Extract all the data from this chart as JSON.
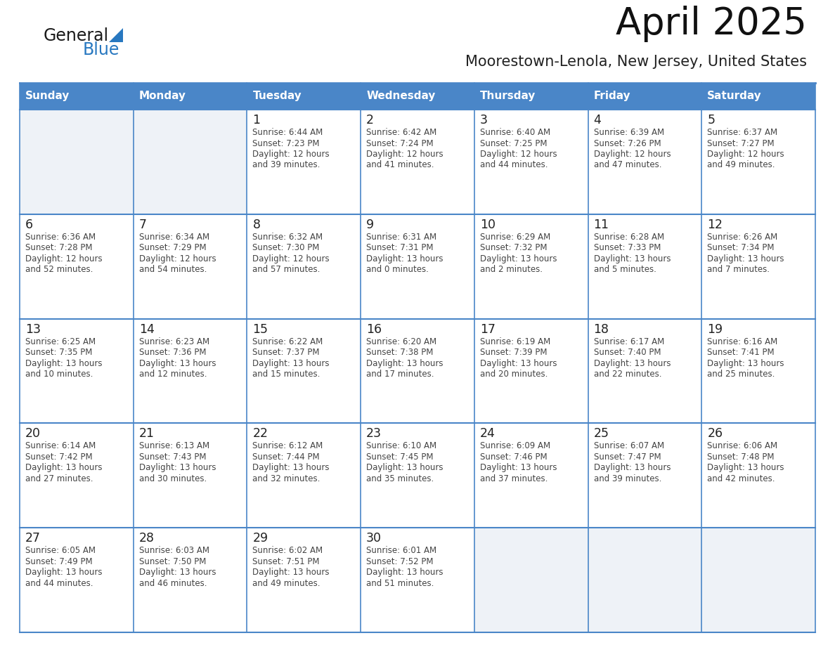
{
  "title": "April 2025",
  "subtitle": "Moorestown-Lenola, New Jersey, United States",
  "header_color": "#4a86c8",
  "header_text_color": "#ffffff",
  "cell_bg_light": "#eef2f7",
  "cell_bg_white": "#ffffff",
  "text_color": "#333333",
  "line_color": "#4a86c8",
  "days_of_week": [
    "Sunday",
    "Monday",
    "Tuesday",
    "Wednesday",
    "Thursday",
    "Friday",
    "Saturday"
  ],
  "calendar_data": [
    [
      {
        "day": "",
        "info": ""
      },
      {
        "day": "",
        "info": ""
      },
      {
        "day": "1",
        "info": "Sunrise: 6:44 AM\nSunset: 7:23 PM\nDaylight: 12 hours\nand 39 minutes."
      },
      {
        "day": "2",
        "info": "Sunrise: 6:42 AM\nSunset: 7:24 PM\nDaylight: 12 hours\nand 41 minutes."
      },
      {
        "day": "3",
        "info": "Sunrise: 6:40 AM\nSunset: 7:25 PM\nDaylight: 12 hours\nand 44 minutes."
      },
      {
        "day": "4",
        "info": "Sunrise: 6:39 AM\nSunset: 7:26 PM\nDaylight: 12 hours\nand 47 minutes."
      },
      {
        "day": "5",
        "info": "Sunrise: 6:37 AM\nSunset: 7:27 PM\nDaylight: 12 hours\nand 49 minutes."
      }
    ],
    [
      {
        "day": "6",
        "info": "Sunrise: 6:36 AM\nSunset: 7:28 PM\nDaylight: 12 hours\nand 52 minutes."
      },
      {
        "day": "7",
        "info": "Sunrise: 6:34 AM\nSunset: 7:29 PM\nDaylight: 12 hours\nand 54 minutes."
      },
      {
        "day": "8",
        "info": "Sunrise: 6:32 AM\nSunset: 7:30 PM\nDaylight: 12 hours\nand 57 minutes."
      },
      {
        "day": "9",
        "info": "Sunrise: 6:31 AM\nSunset: 7:31 PM\nDaylight: 13 hours\nand 0 minutes."
      },
      {
        "day": "10",
        "info": "Sunrise: 6:29 AM\nSunset: 7:32 PM\nDaylight: 13 hours\nand 2 minutes."
      },
      {
        "day": "11",
        "info": "Sunrise: 6:28 AM\nSunset: 7:33 PM\nDaylight: 13 hours\nand 5 minutes."
      },
      {
        "day": "12",
        "info": "Sunrise: 6:26 AM\nSunset: 7:34 PM\nDaylight: 13 hours\nand 7 minutes."
      }
    ],
    [
      {
        "day": "13",
        "info": "Sunrise: 6:25 AM\nSunset: 7:35 PM\nDaylight: 13 hours\nand 10 minutes."
      },
      {
        "day": "14",
        "info": "Sunrise: 6:23 AM\nSunset: 7:36 PM\nDaylight: 13 hours\nand 12 minutes."
      },
      {
        "day": "15",
        "info": "Sunrise: 6:22 AM\nSunset: 7:37 PM\nDaylight: 13 hours\nand 15 minutes."
      },
      {
        "day": "16",
        "info": "Sunrise: 6:20 AM\nSunset: 7:38 PM\nDaylight: 13 hours\nand 17 minutes."
      },
      {
        "day": "17",
        "info": "Sunrise: 6:19 AM\nSunset: 7:39 PM\nDaylight: 13 hours\nand 20 minutes."
      },
      {
        "day": "18",
        "info": "Sunrise: 6:17 AM\nSunset: 7:40 PM\nDaylight: 13 hours\nand 22 minutes."
      },
      {
        "day": "19",
        "info": "Sunrise: 6:16 AM\nSunset: 7:41 PM\nDaylight: 13 hours\nand 25 minutes."
      }
    ],
    [
      {
        "day": "20",
        "info": "Sunrise: 6:14 AM\nSunset: 7:42 PM\nDaylight: 13 hours\nand 27 minutes."
      },
      {
        "day": "21",
        "info": "Sunrise: 6:13 AM\nSunset: 7:43 PM\nDaylight: 13 hours\nand 30 minutes."
      },
      {
        "day": "22",
        "info": "Sunrise: 6:12 AM\nSunset: 7:44 PM\nDaylight: 13 hours\nand 32 minutes."
      },
      {
        "day": "23",
        "info": "Sunrise: 6:10 AM\nSunset: 7:45 PM\nDaylight: 13 hours\nand 35 minutes."
      },
      {
        "day": "24",
        "info": "Sunrise: 6:09 AM\nSunset: 7:46 PM\nDaylight: 13 hours\nand 37 minutes."
      },
      {
        "day": "25",
        "info": "Sunrise: 6:07 AM\nSunset: 7:47 PM\nDaylight: 13 hours\nand 39 minutes."
      },
      {
        "day": "26",
        "info": "Sunrise: 6:06 AM\nSunset: 7:48 PM\nDaylight: 13 hours\nand 42 minutes."
      }
    ],
    [
      {
        "day": "27",
        "info": "Sunrise: 6:05 AM\nSunset: 7:49 PM\nDaylight: 13 hours\nand 44 minutes."
      },
      {
        "day": "28",
        "info": "Sunrise: 6:03 AM\nSunset: 7:50 PM\nDaylight: 13 hours\nand 46 minutes."
      },
      {
        "day": "29",
        "info": "Sunrise: 6:02 AM\nSunset: 7:51 PM\nDaylight: 13 hours\nand 49 minutes."
      },
      {
        "day": "30",
        "info": "Sunrise: 6:01 AM\nSunset: 7:52 PM\nDaylight: 13 hours\nand 51 minutes."
      },
      {
        "day": "",
        "info": ""
      },
      {
        "day": "",
        "info": ""
      },
      {
        "day": "",
        "info": ""
      }
    ]
  ],
  "logo_general_color": "#1a1a1a",
  "logo_blue_color": "#2878c0",
  "logo_triangle_color": "#2878c0"
}
